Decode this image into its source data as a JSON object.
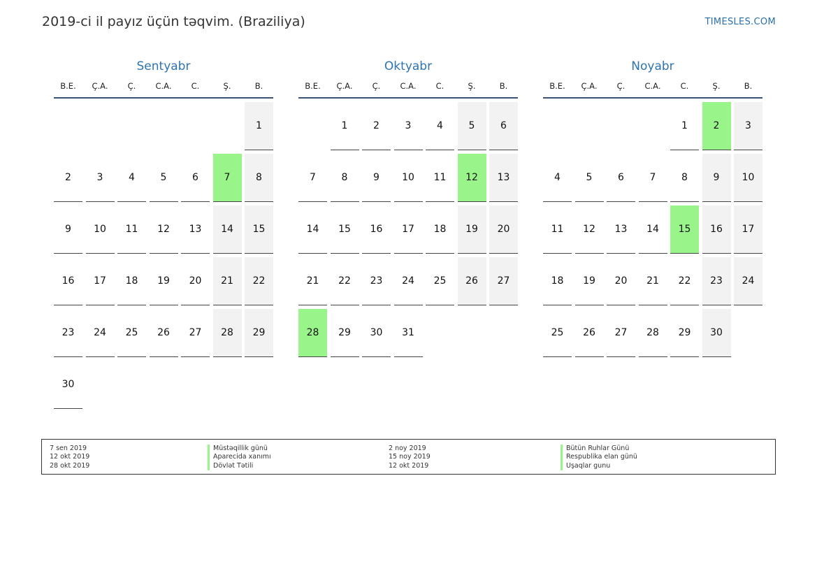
{
  "header": {
    "title": "2019-ci il payız üçün təqvim. (Braziliya)",
    "brand": "TIMESLES.COM"
  },
  "colors": {
    "holiday": "#99f58a",
    "weekend": "#f2f2f2",
    "month_title": "#2e74b0"
  },
  "weekdays": [
    "B.E.",
    "Ç.A.",
    "Ç.",
    "C.A.",
    "C.",
    "Ş.",
    "B."
  ],
  "months": [
    {
      "name": "Sentyabr",
      "first_weekday_index": 6,
      "days": 30,
      "holidays": [
        7
      ]
    },
    {
      "name": "Oktyabr",
      "first_weekday_index": 1,
      "days": 31,
      "holidays": [
        12,
        28
      ]
    },
    {
      "name": "Noyabr",
      "first_weekday_index": 4,
      "days": 30,
      "holidays": [
        2,
        15
      ]
    }
  ],
  "legend": {
    "left_dates": [
      "7 sen 2019",
      "12 okt 2019",
      "28 okt 2019"
    ],
    "left_names": [
      "Müstəqillik günü",
      "Aparecida xanımı",
      "Dövlət Tətili"
    ],
    "right_dates": [
      "2 noy 2019",
      "15 noy 2019",
      "12 okt 2019"
    ],
    "right_names": [
      "Bütün Ruhlar Günü",
      "Respublika elan günü",
      "Uşaqlar gunu"
    ]
  }
}
